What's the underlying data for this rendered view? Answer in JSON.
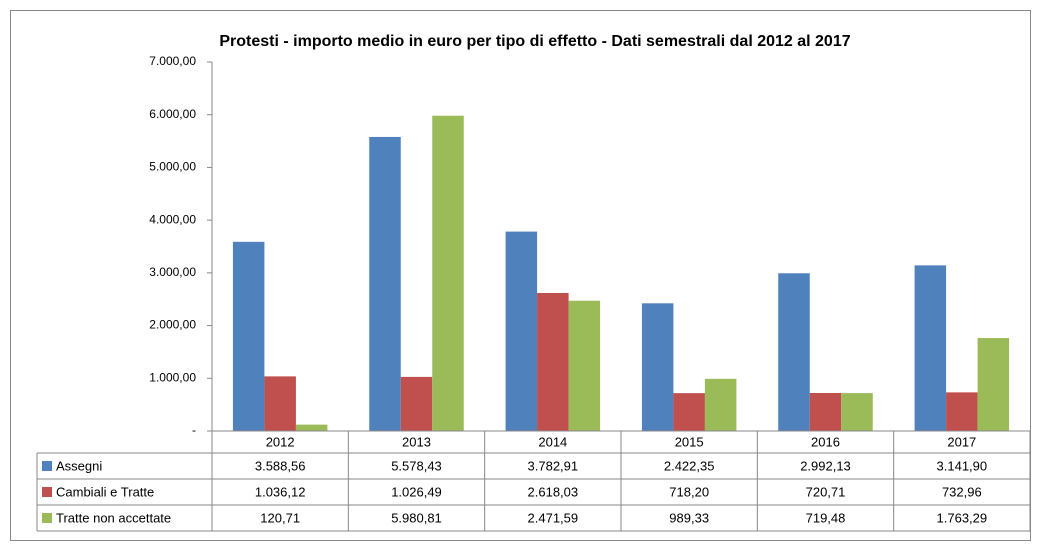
{
  "chart_data": {
    "type": "bar",
    "title": "Protesti - importo medio in euro per tipo di effetto - Dati semestrali dal 2012 al 2017",
    "categories": [
      "2012",
      "2013",
      "2014",
      "2015",
      "2016",
      "2017"
    ],
    "series": [
      {
        "name": "Assegni",
        "color": "#4f81bd",
        "values": [
          3588.56,
          5578.43,
          3782.91,
          2422.35,
          2992.13,
          3141.9
        ],
        "value_labels": [
          "3.588,56",
          "5.578,43",
          "3.782,91",
          "2.422,35",
          "2.992,13",
          "3.141,90"
        ]
      },
      {
        "name": "Cambiali e Tratte",
        "color": "#c0504d",
        "values": [
          1036.12,
          1026.49,
          2618.03,
          718.2,
          720.71,
          732.96
        ],
        "value_labels": [
          "1.036,12",
          "1.026,49",
          "2.618,03",
          "718,20",
          "720,71",
          "732,96"
        ]
      },
      {
        "name": "Tratte non accettate",
        "color": "#9bbb59",
        "values": [
          120.71,
          5980.81,
          2471.59,
          989.33,
          719.48,
          1763.29
        ],
        "value_labels": [
          "120,71",
          "5.980,81",
          "2.471,59",
          "989,33",
          "719,48",
          "1.763,29"
        ]
      }
    ],
    "ylim": [
      0,
      7000
    ],
    "yticks": [
      {
        "value": 0,
        "label": "-"
      },
      {
        "value": 1000,
        "label": "1.000,00"
      },
      {
        "value": 2000,
        "label": "2.000,00"
      },
      {
        "value": 3000,
        "label": "3.000,00"
      },
      {
        "value": 4000,
        "label": "4.000,00"
      },
      {
        "value": 5000,
        "label": "5.000,00"
      },
      {
        "value": 6000,
        "label": "6.000,00"
      },
      {
        "value": 7000,
        "label": "7.000,00"
      }
    ],
    "grid": false
  }
}
